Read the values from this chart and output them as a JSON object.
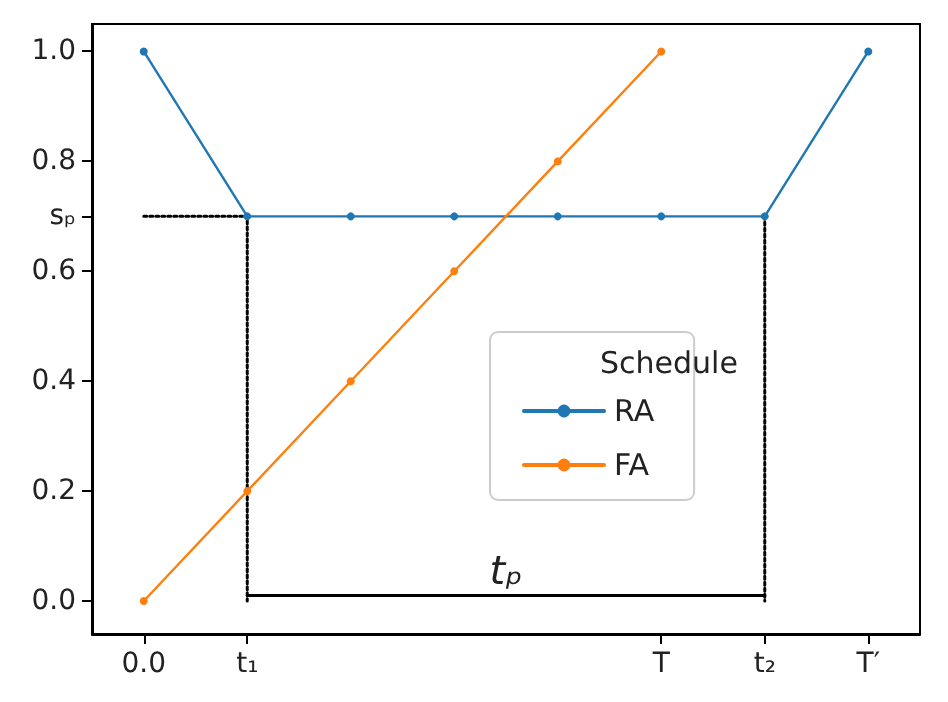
{
  "chart_data": {
    "type": "line",
    "legend_title": "Schedule",
    "legend": "right",
    "grid": false,
    "marker": "circle",
    "categories": [
      "0.0",
      "t₁",
      null,
      null,
      null,
      "T",
      "t₂",
      "T′"
    ],
    "ylim": [
      -0.06,
      1.05
    ],
    "yticks": [
      {
        "value": 0,
        "label": "0.0"
      },
      {
        "value": 0.2,
        "label": "0.2"
      },
      {
        "value": 0.4,
        "label": "0.4"
      },
      {
        "value": 0.6,
        "label": "0.6"
      },
      {
        "value": 0.7,
        "label": "sₚ"
      },
      {
        "value": 0.8,
        "label": "0.8"
      },
      {
        "value": 1,
        "label": "1.0"
      }
    ],
    "annotations": [
      "tₚ"
    ],
    "series": [
      {
        "name": "RA",
        "color": "#1f77b4",
        "values": [
          1.0,
          0.7,
          0.7,
          0.7,
          0.7,
          0.7,
          0.7,
          1.0
        ]
      },
      {
        "name": "FA",
        "color": "#ff7f0e",
        "values": [
          0,
          0.2,
          0.4,
          0.6,
          0.8,
          1.0,
          null,
          null
        ]
      },
      {
        "color": "#000000",
        "x": [
          "0.0",
          "t₁",
          "t₁"
        ],
        "values": [
          0.7,
          0.7,
          0
        ],
        "marker": "none",
        "line_style": "dotted"
      },
      {
        "color": "#000000",
        "x": [
          "t₂",
          "t₂"
        ],
        "values": [
          0.7,
          0
        ],
        "marker": "none",
        "line_style": "dotted"
      },
      {
        "color": "#000000",
        "x": [
          "t₁",
          "t₂"
        ],
        "values": [
          0.01,
          0.01
        ],
        "marker": "none",
        "line_style": "solid"
      }
    ]
  }
}
